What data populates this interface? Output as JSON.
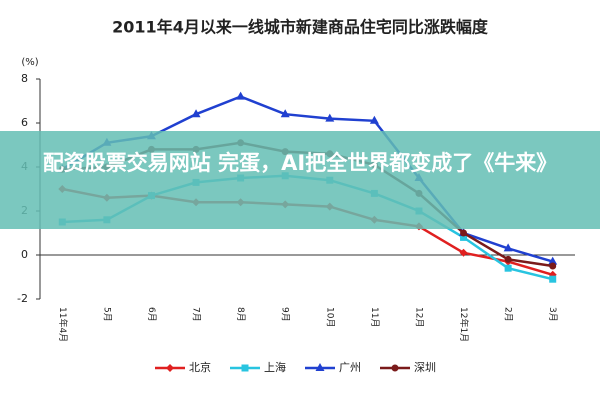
{
  "chart_data": {
    "type": "line",
    "title": "2011年4月以来一线城市新建商品住宅同比涨跌幅度",
    "y_label": "(%)",
    "categories": [
      "11年4月",
      "5月",
      "6月",
      "7月",
      "8月",
      "9月",
      "10月",
      "11月",
      "12月",
      "12年1月",
      "2月",
      "3月"
    ],
    "series": [
      {
        "name": "北京",
        "color": "#e02020",
        "marker": "diamond",
        "values": [
          3.0,
          2.6,
          2.7,
          2.4,
          2.4,
          2.3,
          2.2,
          1.6,
          1.3,
          0.1,
          -0.3,
          -0.9
        ]
      },
      {
        "name": "上海",
        "color": "#28c4e0",
        "marker": "square",
        "values": [
          1.5,
          1.6,
          2.7,
          3.3,
          3.5,
          3.6,
          3.4,
          2.8,
          2.0,
          0.8,
          -0.6,
          -1.1
        ]
      },
      {
        "name": "广州",
        "color": "#2040d0",
        "marker": "triangle",
        "values": [
          3.9,
          5.1,
          5.4,
          6.4,
          7.2,
          6.4,
          6.2,
          6.1,
          3.5,
          1.0,
          0.3,
          -0.3
        ]
      },
      {
        "name": "深圳",
        "color": "#7a1a1a",
        "marker": "circle",
        "values": [
          3.9,
          4.0,
          4.8,
          4.8,
          5.1,
          4.7,
          4.6,
          4.1,
          2.8,
          1.0,
          -0.2,
          -0.5
        ]
      }
    ],
    "ylim": [
      -2,
      8
    ],
    "yticks": [
      -2,
      0,
      2,
      4,
      6,
      8
    ],
    "annotations": [
      "配资股票交易网站 完蛋，AI把全世界都变成了《牛来》"
    ]
  }
}
